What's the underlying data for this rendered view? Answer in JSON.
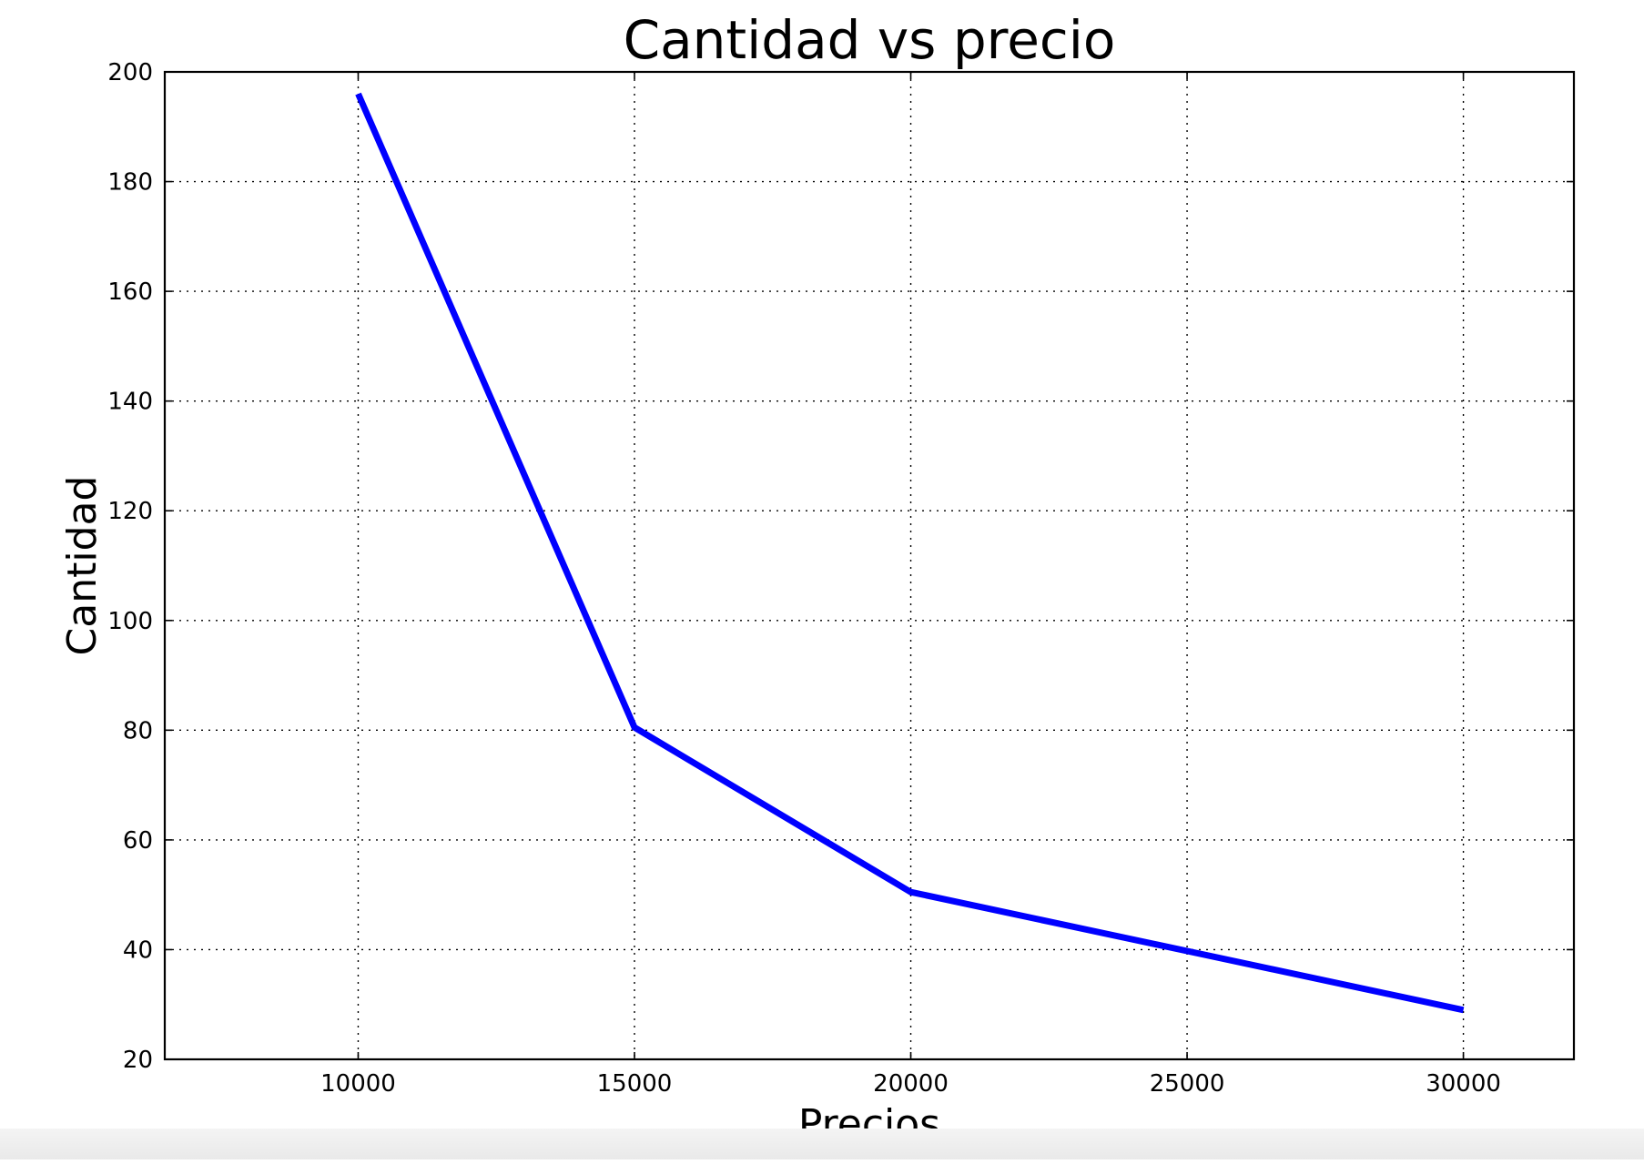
{
  "chart_data": {
    "type": "line",
    "title": "Cantidad vs precio",
    "xlabel": "Precios",
    "ylabel": "Cantidad",
    "xlim": [
      6500,
      32000
    ],
    "ylim": [
      20,
      200
    ],
    "xticks": [
      10000,
      15000,
      20000,
      25000,
      30000
    ],
    "yticks": [
      20,
      40,
      60,
      80,
      100,
      120,
      140,
      160,
      180,
      200
    ],
    "grid": true,
    "series": [
      {
        "color": "#0000ff",
        "x": [
          10000,
          15000,
          20000,
          30000
        ],
        "y": [
          196,
          80.5,
          50.5,
          29
        ]
      }
    ]
  }
}
